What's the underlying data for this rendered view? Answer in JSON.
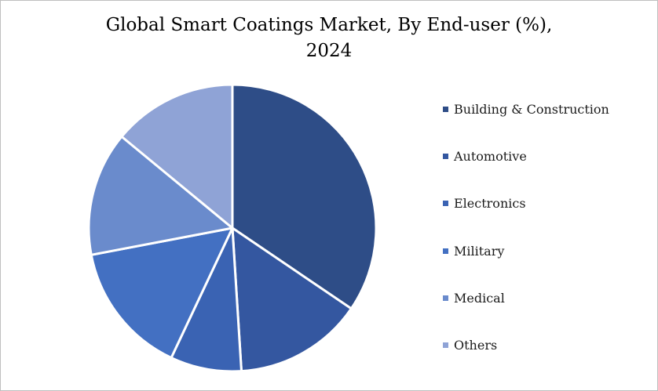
{
  "chart_data": {
    "type": "pie",
    "title_line1": "Global Smart Coatings Market, By End-user (%),",
    "title_line2": "2024",
    "categories": [
      "Building & Construction",
      "Automotive",
      "Electronics",
      "Military",
      "Medical",
      "Others"
    ],
    "values": [
      34.5,
      14.5,
      8,
      15,
      14,
      14
    ],
    "colors": [
      "#2e4d87",
      "#3457a0",
      "#3a63b3",
      "#4370c2",
      "#6a8bcc",
      "#8fa3d6"
    ],
    "start_angle_deg": 0,
    "direction": "clockwise",
    "legend_position": "right"
  }
}
